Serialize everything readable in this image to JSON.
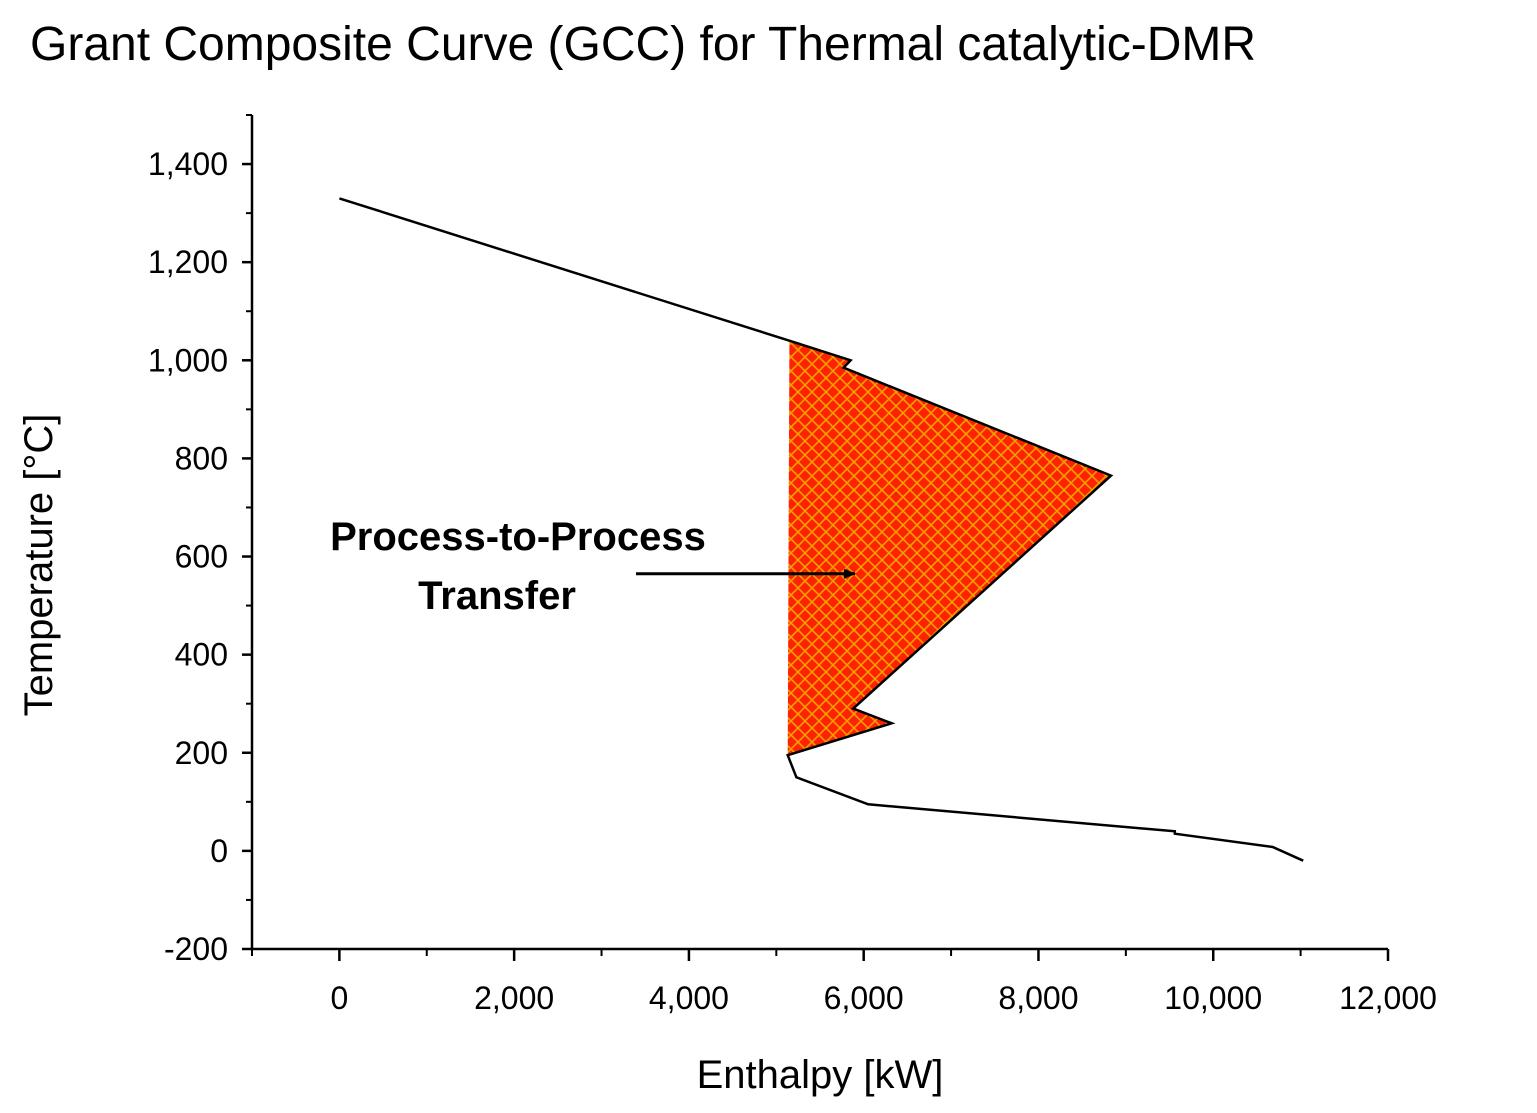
{
  "chart_data": {
    "type": "line",
    "title": "Grant Composite Curve (GCC) for Thermal catalytic-DMR",
    "xlabel": "Enthalpy  [kW]",
    "ylabel": "Temperature  [°C]",
    "xlim": [
      -1000,
      12000
    ],
    "ylim": [
      -200,
      1500
    ],
    "xticks": [
      0,
      2000,
      4000,
      6000,
      8000,
      10000,
      12000
    ],
    "xtick_labels": [
      "0",
      "2,000",
      "4,000",
      "6,000",
      "8,000",
      "10,000",
      "12,000"
    ],
    "yticks": [
      -200,
      0,
      200,
      400,
      600,
      800,
      1000,
      1200,
      1400
    ],
    "ytick_labels": [
      "-200",
      "0",
      "200",
      "400",
      "600",
      "800",
      "1,000",
      "1,200",
      "1,400"
    ],
    "grid": false,
    "series": [
      {
        "name": "GCC",
        "color": "#000000",
        "x": [
          0,
          5150,
          5850,
          5770,
          8830,
          5880,
          6320,
          5130,
          5230,
          6050,
          9560,
          9560,
          10680,
          11030
        ],
        "y": [
          1330,
          1040,
          1000,
          985,
          765,
          290,
          260,
          195,
          150,
          95,
          40,
          35,
          8,
          -20
        ]
      }
    ],
    "shaded_region": {
      "label": "Process-to-Process Transfer",
      "fill": "#ff2200",
      "hatch": "#f0a000",
      "x": [
        5130,
        5150,
        5850,
        5770,
        8830,
        5880,
        6320,
        5130
      ],
      "y": [
        195,
        1040,
        1000,
        985,
        765,
        290,
        260,
        195
      ]
    },
    "annotations": [
      {
        "line1": "Process-to-Process",
        "line2": "Transfer",
        "arrow_to": {
          "x": 5900,
          "y": 565
        }
      }
    ]
  }
}
